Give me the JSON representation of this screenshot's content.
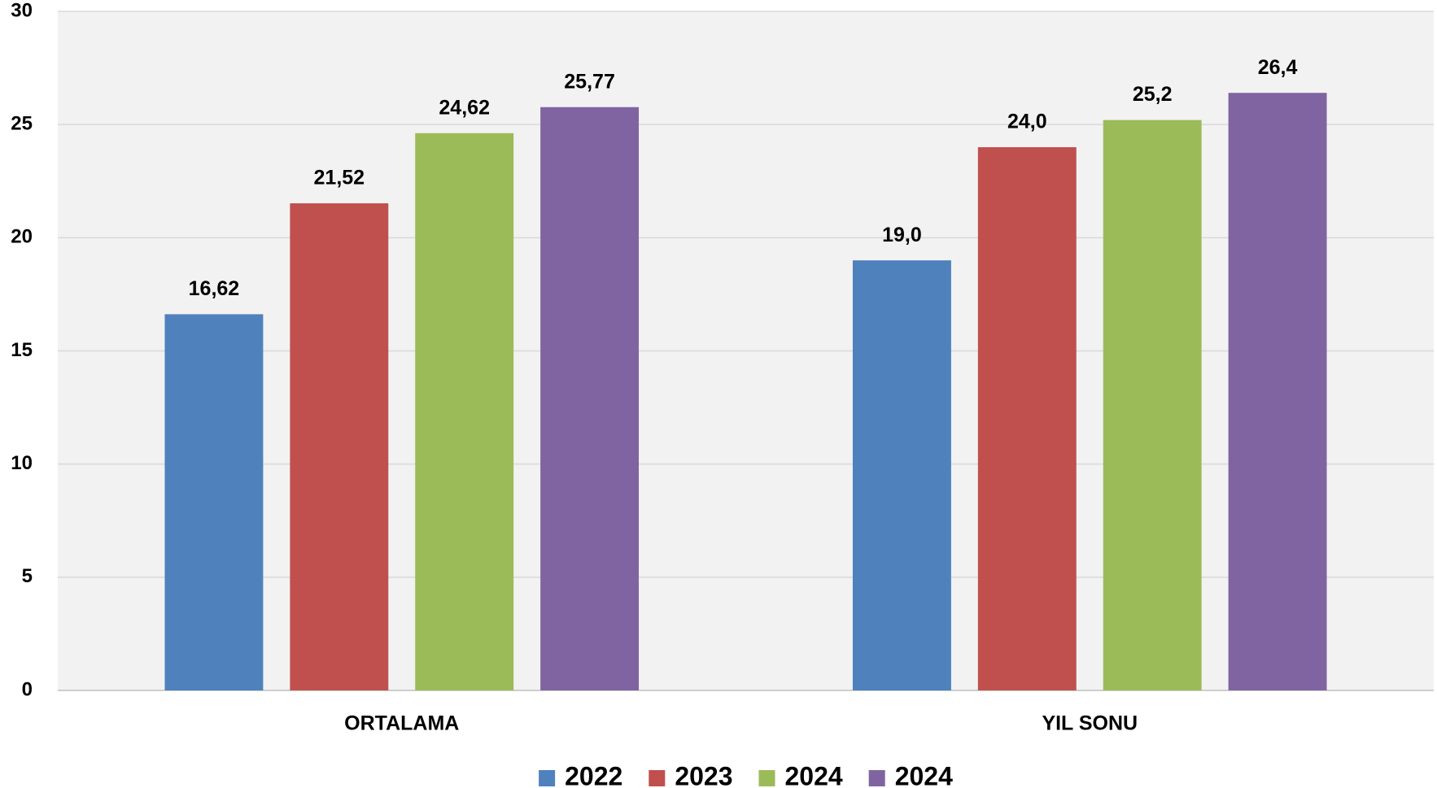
{
  "chart_data": {
    "type": "bar",
    "categories": [
      "ORTALAMA",
      "YIL SONU"
    ],
    "series": [
      {
        "name": "2022",
        "color": "#4f81bd",
        "values": [
          16.62,
          19.0
        ],
        "value_labels": [
          "16,62",
          "19,0"
        ]
      },
      {
        "name": "2023",
        "color": "#c0504d",
        "values": [
          21.52,
          24.0
        ],
        "value_labels": [
          "21,52",
          "24,0"
        ]
      },
      {
        "name": "2024",
        "color": "#9bbb59",
        "values": [
          24.62,
          25.2
        ],
        "value_labels": [
          "24,62",
          "25,2"
        ]
      },
      {
        "name": "2024",
        "color": "#8064a2",
        "values": [
          25.77,
          26.4
        ],
        "value_labels": [
          "25,77",
          "26,4"
        ]
      }
    ],
    "ylim": [
      0,
      30
    ],
    "yticks": [
      0,
      5,
      10,
      15,
      20,
      25,
      30
    ],
    "grid": true,
    "legend": "bottom"
  }
}
